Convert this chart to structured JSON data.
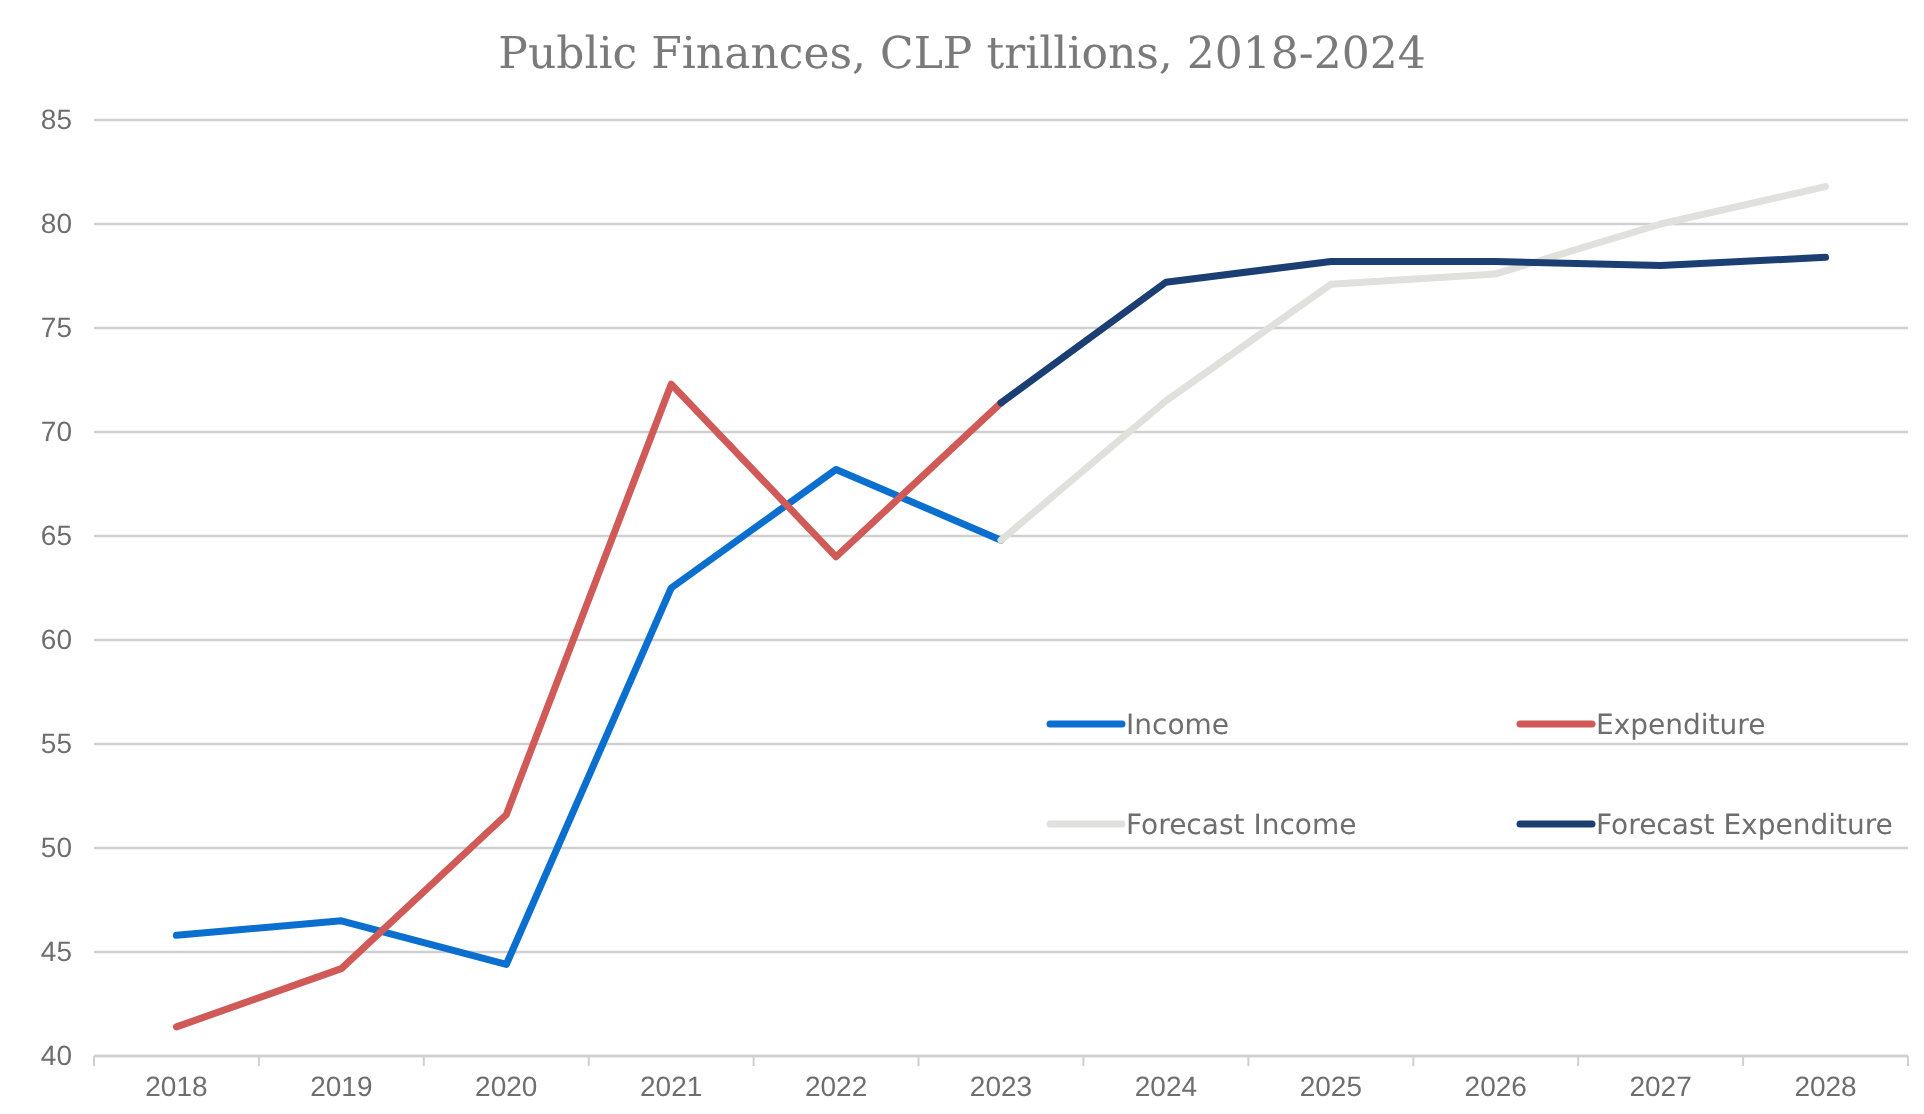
{
  "chart_data": {
    "type": "line",
    "title": "Public Finances, CLP trillions, 2018-2024",
    "categories": [
      "2018",
      "2019",
      "2020",
      "2021",
      "2022",
      "2023",
      "2024",
      "2025",
      "2026",
      "2027",
      "2028"
    ],
    "series": [
      {
        "name": "Income",
        "color": "#0a6fcf",
        "values": [
          45.8,
          46.5,
          44.4,
          62.5,
          68.2,
          64.8,
          null,
          null,
          null,
          null,
          null
        ]
      },
      {
        "name": "Expenditure",
        "color": "#d05a57",
        "values": [
          41.4,
          44.2,
          51.6,
          72.3,
          64.0,
          71.4,
          null,
          null,
          null,
          null,
          null
        ]
      },
      {
        "name": "Forecast Income",
        "color": "#e0e0dc",
        "values": [
          null,
          null,
          null,
          null,
          null,
          64.8,
          71.5,
          77.1,
          77.6,
          80.0,
          81.8
        ]
      },
      {
        "name": "Forecast Expenditure",
        "color": "#1c3f73",
        "values": [
          null,
          null,
          null,
          null,
          null,
          71.4,
          77.2,
          78.2,
          78.2,
          78.0,
          78.4
        ]
      }
    ],
    "ylim": [
      40,
      85
    ],
    "yticks": [
      40,
      45,
      50,
      55,
      60,
      65,
      70,
      75,
      80,
      85
    ],
    "grid": "y",
    "legend": "right",
    "marker": "none",
    "line_style": "solid"
  }
}
